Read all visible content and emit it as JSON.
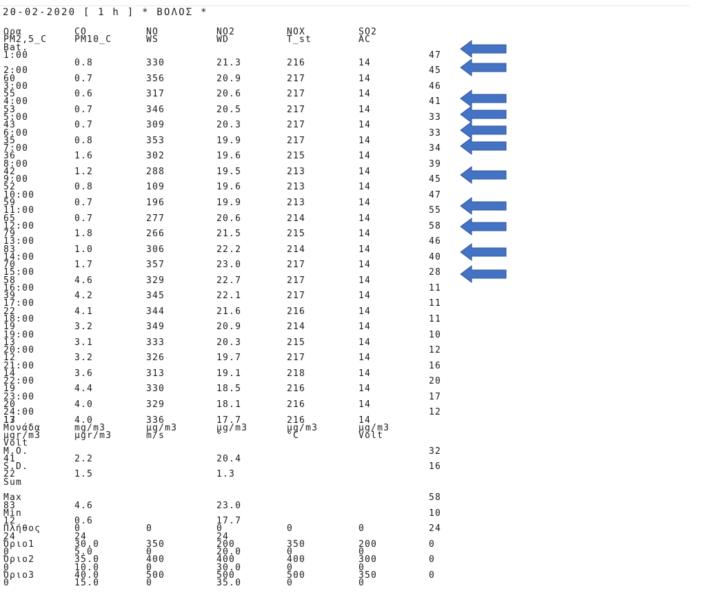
{
  "title": "20-02-2020 [ 1 h ] * ΒΟΛΟΣ *",
  "header_row1": [
    "Ωρα",
    "CO",
    "NO",
    "NO2",
    "NOX",
    "SO2"
  ],
  "header_row2": [
    "PM2,5_C",
    "PM10_C",
    "WS",
    "WD",
    "T_st",
    "AC"
  ],
  "header_row3": "Bat.",
  "hours": [
    {
      "time": "1:00",
      "prev": "",
      "vals": [
        "0.8",
        "330",
        "21.3",
        "216",
        "14"
      ],
      "bat": "47"
    },
    {
      "time": "2:00",
      "prev": "60",
      "vals": [
        "0.7",
        "356",
        "20.9",
        "217",
        "14"
      ],
      "bat": "45"
    },
    {
      "time": "3:00",
      "prev": "55",
      "vals": [
        "0.6",
        "317",
        "20.6",
        "217",
        "14"
      ],
      "bat": "46"
    },
    {
      "time": "4:00",
      "prev": "53",
      "vals": [
        "0.7",
        "346",
        "20.5",
        "217",
        "14"
      ],
      "bat": "41"
    },
    {
      "time": "5:00",
      "prev": "43",
      "vals": [
        "0.7",
        "309",
        "20.3",
        "217",
        "14"
      ],
      "bat": "33"
    },
    {
      "time": "6:00",
      "prev": "35",
      "vals": [
        "0.8",
        "353",
        "19.9",
        "217",
        "14"
      ],
      "bat": "33"
    },
    {
      "time": "7:00",
      "prev": "36",
      "vals": [
        "1.6",
        "302",
        "19.6",
        "215",
        "14"
      ],
      "bat": "34"
    },
    {
      "time": "8:00",
      "prev": "42",
      "vals": [
        "1.2",
        "288",
        "19.5",
        "213",
        "14"
      ],
      "bat": "39"
    },
    {
      "time": "9:00",
      "prev": "52",
      "vals": [
        "0.8",
        "109",
        "19.6",
        "213",
        "14"
      ],
      "bat": "45"
    },
    {
      "time": "10:00",
      "prev": "59",
      "vals": [
        "0.7",
        "196",
        "19.9",
        "213",
        "14"
      ],
      "bat": "47"
    },
    {
      "time": "11:00",
      "prev": "65",
      "vals": [
        "0.7",
        "277",
        "20.6",
        "214",
        "14"
      ],
      "bat": "55"
    },
    {
      "time": "12:00",
      "prev": "79",
      "vals": [
        "1.8",
        "266",
        "21.5",
        "215",
        "14"
      ],
      "bat": "58"
    },
    {
      "time": "13:00",
      "prev": "83",
      "vals": [
        "1.0",
        "306",
        "22.2",
        "214",
        "14"
      ],
      "bat": "46"
    },
    {
      "time": "14:00",
      "prev": "70",
      "vals": [
        "1.7",
        "357",
        "23.0",
        "217",
        "14"
      ],
      "bat": "40"
    },
    {
      "time": "15:00",
      "prev": "58",
      "vals": [
        "4.6",
        "329",
        "22.7",
        "217",
        "14"
      ],
      "bat": "28"
    },
    {
      "time": "16:00",
      "prev": "39",
      "vals": [
        "4.2",
        "345",
        "22.1",
        "217",
        "14"
      ],
      "bat": "11"
    },
    {
      "time": "17:00",
      "prev": "22",
      "vals": [
        "4.1",
        "344",
        "21.6",
        "216",
        "14"
      ],
      "bat": "11"
    },
    {
      "time": "18:00",
      "prev": "19",
      "vals": [
        "3.2",
        "349",
        "20.9",
        "214",
        "14"
      ],
      "bat": "11"
    },
    {
      "time": "19:00",
      "prev": "13",
      "vals": [
        "3.1",
        "333",
        "20.3",
        "215",
        "14"
      ],
      "bat": "10"
    },
    {
      "time": "20:00",
      "prev": "12",
      "vals": [
        "3.2",
        "326",
        "19.7",
        "217",
        "14"
      ],
      "bat": "12"
    },
    {
      "time": "21:00",
      "prev": "14",
      "vals": [
        "3.6",
        "313",
        "19.1",
        "218",
        "14"
      ],
      "bat": "16"
    },
    {
      "time": "22:00",
      "prev": "19",
      "vals": [
        "4.4",
        "330",
        "18.5",
        "216",
        "14"
      ],
      "bat": "20"
    },
    {
      "time": "23:00",
      "prev": "20",
      "vals": [
        "4.0",
        "329",
        "18.1",
        "216",
        "14"
      ],
      "bat": "17"
    },
    {
      "time": "24:00",
      "prev": "17",
      "vals": [
        "4.0",
        "336",
        "17.7",
        "216",
        "14"
      ],
      "bat": "12"
    }
  ],
  "after_last_hour": "13",
  "units_row1": [
    "Μονάδα",
    "mg/m3",
    "μg/m3",
    "μg/m3",
    "μg/m3",
    "μg/m3"
  ],
  "units_row2": [
    "μgr/m3",
    "μgr/m3",
    "m/s",
    "°",
    "°C",
    "Volt"
  ],
  "units_row3": "Volt",
  "stats": [
    {
      "label": "M.O.",
      "bat": "32",
      "prev": "41",
      "v": [
        "2.2",
        "",
        "20.4",
        "",
        ""
      ]
    },
    {
      "label": "S.D.",
      "bat": "16",
      "prev": "22",
      "v": [
        "1.5",
        "",
        "1.3",
        "",
        ""
      ]
    },
    {
      "label": "Sum",
      "bat": "",
      "prev": "",
      "v": [
        "",
        "",
        "",
        "",
        ""
      ]
    },
    {
      "label": "Max",
      "bat": "58",
      "prev": "83",
      "v": [
        "4.6",
        "",
        "23.0",
        "",
        ""
      ]
    },
    {
      "label": "Min",
      "bat": "10",
      "prev": "12",
      "v": [
        "0.6",
        "",
        "17.7",
        "",
        ""
      ]
    },
    {
      "label": "Πλήθος",
      "bat": "24",
      "prev": "24",
      "v": [
        "24",
        "",
        "24",
        "",
        ""
      ],
      "inline": [
        "0",
        "0",
        "0",
        "0",
        "0"
      ]
    },
    {
      "label": "Όριο1",
      "bat": "0",
      "prev": "0",
      "v": [
        "5.0",
        "0",
        "20.0",
        "0",
        "0"
      ],
      "inline": [
        "30.0",
        "350",
        "200",
        "350",
        "200"
      ]
    },
    {
      "label": "Όριο2",
      "bat": "0",
      "prev": "0",
      "v": [
        "10.0",
        "0",
        "30.0",
        "0",
        "0"
      ],
      "inline": [
        "35.0",
        "400",
        "400",
        "400",
        "300"
      ]
    },
    {
      "label": "Όριο3",
      "bat": "0",
      "prev": "0",
      "v": [
        "15.0",
        "0",
        "35.0",
        "0",
        "0"
      ],
      "inline": [
        "40.0",
        "500",
        "500",
        "500",
        "350"
      ]
    }
  ],
  "arrow_color": "#4472c4",
  "arrow_icon": "left-arrow-icon"
}
